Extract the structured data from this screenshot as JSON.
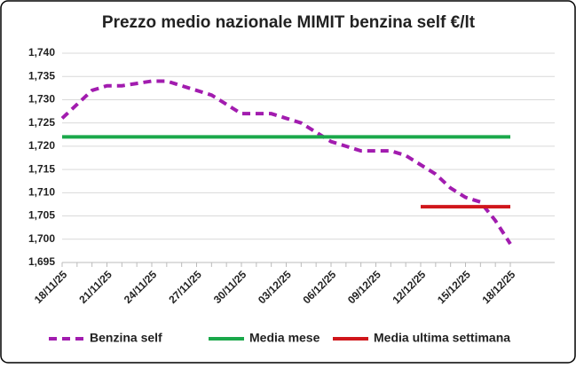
{
  "chart_data": {
    "type": "line",
    "title": "Prezzo medio nazionale MIMIT benzina self €/lt",
    "categories": [
      "18/11/25",
      null,
      null,
      "21/11/25",
      null,
      null,
      "24/11/25",
      null,
      null,
      "27/11/25",
      null,
      null,
      "30/11/25",
      null,
      null,
      "03/12/25",
      null,
      null,
      "06/12/25",
      null,
      null,
      "09/12/25",
      null,
      null,
      "12/12/25",
      null,
      null,
      "15/12/25",
      null,
      null,
      "18/12/25"
    ],
    "series": [
      {
        "name": "Benzina self",
        "color": "#a21caf",
        "dashed": true,
        "values": [
          1.726,
          1.729,
          1.732,
          1.733,
          1.733,
          1.7335,
          1.734,
          1.734,
          1.733,
          1.732,
          1.731,
          1.729,
          1.727,
          1.727,
          1.727,
          1.726,
          1.725,
          1.723,
          1.721,
          1.72,
          1.719,
          1.719,
          1.719,
          1.718,
          1.716,
          1.714,
          1.711,
          1.709,
          1.708,
          1.704,
          1.699
        ]
      },
      {
        "name": "Media mese",
        "color": "#1aa84a",
        "dashed": false,
        "values": [
          1.722,
          1.722,
          1.722,
          1.722,
          1.722,
          1.722,
          1.722,
          1.722,
          1.722,
          1.722,
          1.722,
          1.722,
          1.722,
          1.722,
          1.722,
          1.722,
          1.722,
          1.722,
          1.722,
          1.722,
          1.722,
          1.722,
          1.722,
          1.722,
          1.722,
          1.722,
          1.722,
          1.722,
          1.722,
          1.722,
          1.722
        ]
      },
      {
        "name": "Media ultima settimana",
        "color": "#d0161b",
        "dashed": false,
        "values": [
          null,
          null,
          null,
          null,
          null,
          null,
          null,
          null,
          null,
          null,
          null,
          null,
          null,
          null,
          null,
          null,
          null,
          null,
          null,
          null,
          null,
          null,
          null,
          null,
          1.707,
          1.707,
          1.707,
          1.707,
          1.707,
          1.707,
          1.707
        ]
      }
    ],
    "ylim": [
      1.695,
      1.74
    ],
    "yticks": [
      {
        "value": 1.695,
        "label": "1,695"
      },
      {
        "value": 1.7,
        "label": "1,700"
      },
      {
        "value": 1.705,
        "label": "1,705"
      },
      {
        "value": 1.71,
        "label": "1,710"
      },
      {
        "value": 1.715,
        "label": "1,715"
      },
      {
        "value": 1.72,
        "label": "1,720"
      },
      {
        "value": 1.725,
        "label": "1,725"
      },
      {
        "value": 1.73,
        "label": "1,730"
      },
      {
        "value": 1.735,
        "label": "1,735"
      },
      {
        "value": 1.74,
        "label": "1,740"
      }
    ],
    "grid": true
  }
}
